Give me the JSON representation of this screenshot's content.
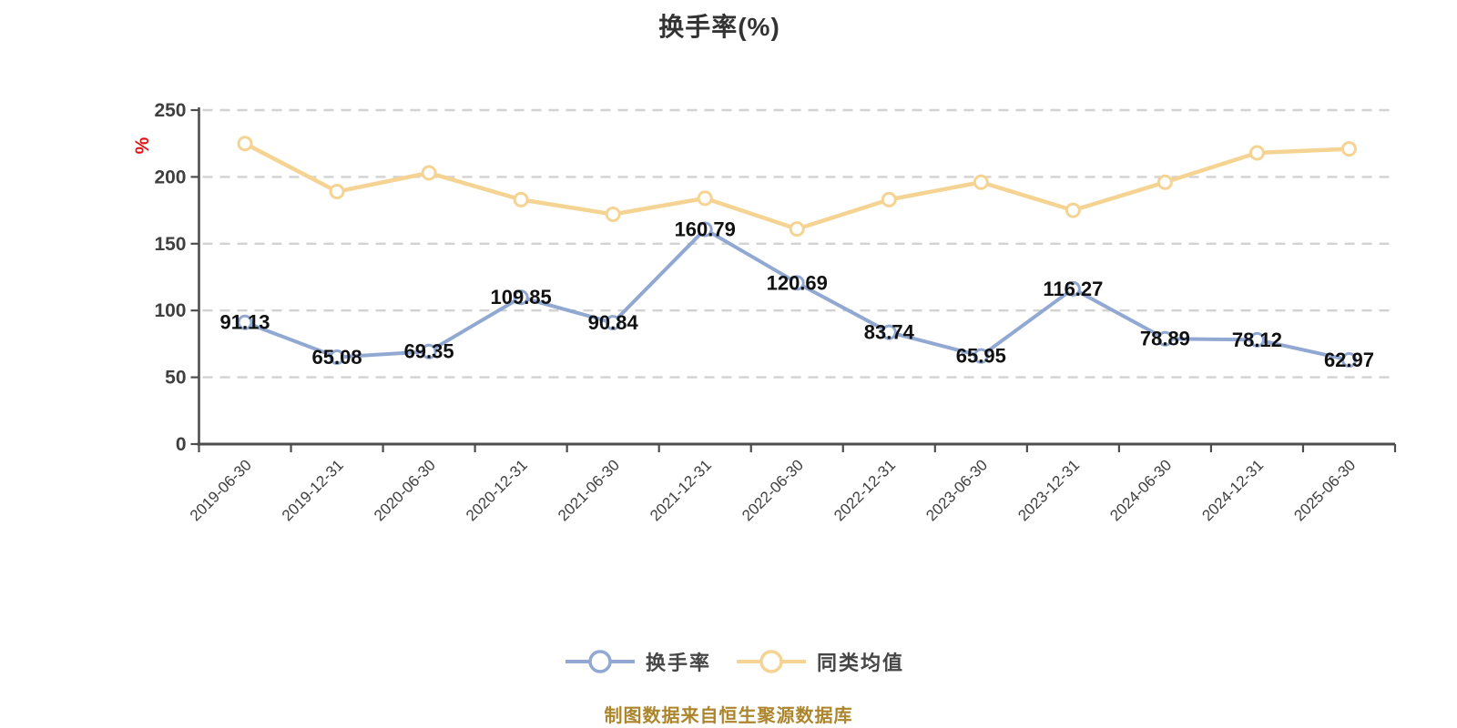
{
  "title": "换手率(%)",
  "y_axis_unit": "%",
  "footer_source": "制图数据来自恒生聚源数据库",
  "colors": {
    "turnover_line": "#91a8d2",
    "peer_average_line": "#f5d392",
    "marker_fill": "#ffffff",
    "axis": "#4d4d4d",
    "gridline": "#d2d2d2",
    "tick_text": "#3f3f3f",
    "data_label": "#111111",
    "unit_label_red": "#e01414",
    "footer_gold": "#ac852c",
    "title_text": "#333333"
  },
  "legend": {
    "items": [
      {
        "label": "换手率",
        "color": "#91a8d2"
      },
      {
        "label": "同类均值",
        "color": "#f5d392"
      }
    ]
  },
  "chart_data": {
    "type": "line",
    "title": "换手率(%)",
    "categories": [
      "2019-06-30",
      "2019-12-31",
      "2020-06-30",
      "2020-12-31",
      "2021-06-30",
      "2021-12-31",
      "2022-06-30",
      "2022-12-31",
      "2023-06-30",
      "2023-12-31",
      "2024-06-30",
      "2024-12-31",
      "2025-06-30"
    ],
    "series": [
      {
        "name": "换手率",
        "color": "#91a8d2",
        "values": [
          91.13,
          65.08,
          69.35,
          109.85,
          90.84,
          160.79,
          120.69,
          83.74,
          65.95,
          116.27,
          78.89,
          78.12,
          62.97
        ],
        "show_labels": true
      },
      {
        "name": "同类均值",
        "color": "#f5d392",
        "values": [
          225,
          189,
          203,
          183,
          172,
          184,
          161,
          183,
          196,
          175,
          196,
          218,
          221
        ],
        "show_labels": false
      }
    ],
    "xlabel": "",
    "ylabel": "%",
    "ylim": [
      0,
      250
    ],
    "yticks": [
      0,
      50,
      100,
      150,
      200,
      250
    ],
    "grid": "horizontal-dashed",
    "legend_position": "bottom"
  }
}
